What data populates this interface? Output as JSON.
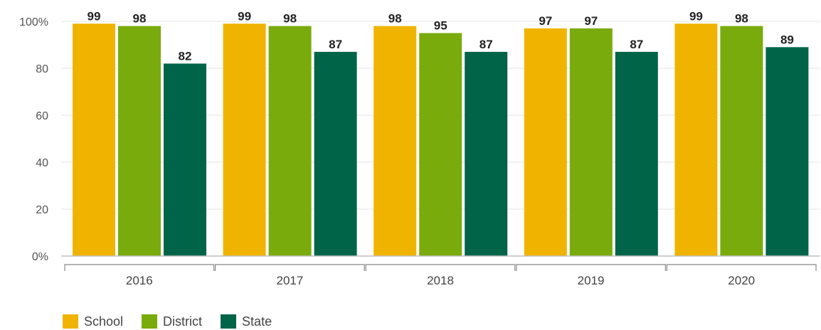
{
  "chart_data": {
    "type": "bar",
    "categories": [
      "2016",
      "2017",
      "2018",
      "2019",
      "2020"
    ],
    "series": [
      {
        "name": "School",
        "color": "#f0b400",
        "values": [
          99,
          99,
          98,
          97,
          99
        ]
      },
      {
        "name": "District",
        "color": "#7aab0c",
        "values": [
          98,
          98,
          95,
          97,
          98
        ]
      },
      {
        "name": "State",
        "color": "#006449",
        "values": [
          82,
          87,
          87,
          87,
          89
        ]
      }
    ],
    "yticks": [
      "0%",
      "20",
      "40",
      "60",
      "80",
      "100%"
    ],
    "ylim": [
      0,
      100
    ],
    "grid": true,
    "legend": "bottom-left"
  }
}
